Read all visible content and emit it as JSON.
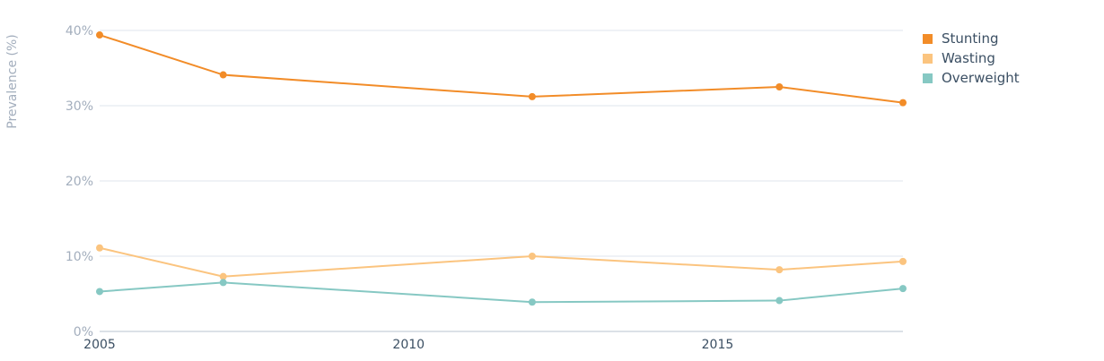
{
  "chart_data": {
    "type": "line",
    "ylabel": "Prevalence (%)",
    "xlabel": "",
    "ylim": [
      0,
      40
    ],
    "xlim": [
      2005,
      2018
    ],
    "y_ticks": [
      0,
      10,
      20,
      30,
      40
    ],
    "y_tick_labels": [
      "0%",
      "10%",
      "20%",
      "30%",
      "40%"
    ],
    "x_ticks": [
      2005,
      2010,
      2015
    ],
    "x_tick_labels": [
      "2005",
      "2010",
      "2015"
    ],
    "grid": true,
    "legend_position": "top-right",
    "series": [
      {
        "name": "Stunting",
        "color": "#f28c28",
        "points": [
          [
            2005,
            39.4
          ],
          [
            2007,
            34.1
          ],
          [
            2012,
            31.2
          ],
          [
            2016,
            32.5
          ],
          [
            2018,
            30.4
          ]
        ]
      },
      {
        "name": "Wasting",
        "color": "#fbc47f",
        "points": [
          [
            2005,
            11.1
          ],
          [
            2007,
            7.3
          ],
          [
            2012,
            10.0
          ],
          [
            2016,
            8.2
          ],
          [
            2018,
            9.3
          ]
        ]
      },
      {
        "name": "Overweight",
        "color": "#86c8c3",
        "points": [
          [
            2005,
            5.3
          ],
          [
            2007,
            6.5
          ],
          [
            2012,
            3.9
          ],
          [
            2016,
            4.1
          ],
          [
            2018,
            5.7
          ]
        ]
      }
    ]
  }
}
